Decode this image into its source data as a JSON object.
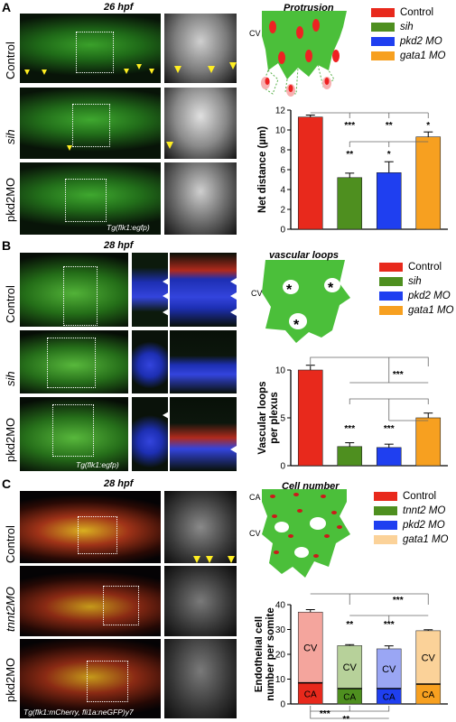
{
  "panels": {
    "A": {
      "letter": "A",
      "timepoint": "26 hpf",
      "rows": [
        "Control",
        "sih",
        "pkd2MO"
      ],
      "transgene": "Tg(flk1:egfp)",
      "diagram_title": "Protrusion",
      "diagram_cv": "CV",
      "legend": [
        {
          "label": "Control",
          "italic": false,
          "color": "#e8291c"
        },
        {
          "label": "sih",
          "italic": true,
          "color": "#4e8f1f"
        },
        {
          "label": "pkd2 MO",
          "italic": true,
          "color": "#1f3ff0"
        },
        {
          "label": "gata1 MO",
          "italic": true,
          "color": "#f7a020"
        }
      ]
    },
    "B": {
      "letter": "B",
      "timepoint": "28 hpf",
      "rows": [
        "Control",
        "sih",
        "pkd2MO"
      ],
      "transgene": "Tg(flk1:egfp)",
      "diagram_title": "vascular loops",
      "diagram_cv": "CV",
      "diagram_marker": "*",
      "legend": [
        {
          "label": "Control",
          "italic": false,
          "color": "#e8291c"
        },
        {
          "label": "sih",
          "italic": true,
          "color": "#4e8f1f"
        },
        {
          "label": "pkd2 MO",
          "italic": true,
          "color": "#1f3ff0"
        },
        {
          "label": "gata1 MO",
          "italic": true,
          "color": "#f7a020"
        }
      ]
    },
    "C": {
      "letter": "C",
      "timepoint": "28 hpf",
      "rows": [
        "Control",
        "tnnt2MO",
        "pkd2MO"
      ],
      "transgene": "Tg(flk1:mCherry, fli1a:neGFP)y7",
      "diagram_title": "Cell number",
      "diagram_cv": "CV",
      "diagram_ca": "CA",
      "legend": [
        {
          "label": "Control",
          "italic": false,
          "color": "#e8291c"
        },
        {
          "label": "tnnt2 MO",
          "italic": true,
          "color": "#4e8f1f"
        },
        {
          "label": "pkd2 MO",
          "italic": true,
          "color": "#1f3ff0"
        },
        {
          "label": "gata1 MO",
          "italic": true,
          "color": "#f7a020"
        }
      ]
    }
  },
  "chart_data": [
    {
      "type": "bar",
      "panel": "A",
      "categories": [
        "Control",
        "sih",
        "pkd2 MO",
        "gata1 MO"
      ],
      "values": [
        11.3,
        5.2,
        5.7,
        9.3
      ],
      "errors": [
        0.2,
        0.45,
        1.1,
        0.5
      ],
      "colors": [
        "#e8291c",
        "#4e8f1f",
        "#1f3ff0",
        "#f7a020"
      ],
      "ylabel": "Net distance (µm)",
      "ylim": [
        0,
        12
      ],
      "yticks": [
        0,
        2,
        4,
        6,
        8,
        10,
        12
      ],
      "significance_above": [
        {
          "pair": [
            "Control",
            "sih"
          ],
          "label": "***"
        },
        {
          "pair": [
            "Control",
            "pkd2 MO"
          ],
          "label": "**"
        },
        {
          "pair": [
            "Control",
            "gata1 MO"
          ],
          "label": "*"
        }
      ],
      "significance_below": [
        {
          "pair": [
            "sih",
            "gata1 MO"
          ],
          "label": "**"
        },
        {
          "pair": [
            "pkd2 MO",
            "gata1 MO"
          ],
          "label": "*"
        }
      ]
    },
    {
      "type": "bar",
      "panel": "B",
      "categories": [
        "Control",
        "sih",
        "pkd2 MO",
        "gata1 MO"
      ],
      "values": [
        10.0,
        2.0,
        1.9,
        5.0
      ],
      "errors": [
        0.5,
        0.4,
        0.35,
        0.5
      ],
      "colors": [
        "#e8291c",
        "#4e8f1f",
        "#1f3ff0",
        "#f7a020"
      ],
      "ylabel": "Vascular loops per plexus",
      "ylim": [
        0,
        10
      ],
      "yticks": [
        0,
        5,
        10
      ],
      "significance_above": [
        {
          "pair": [
            "Control",
            "sih/pkd2/gata1"
          ],
          "label": "***"
        }
      ],
      "significance_below": [
        {
          "pair": [
            "sih",
            "gata1 MO"
          ],
          "label": "***"
        },
        {
          "pair": [
            "pkd2 MO",
            "gata1 MO"
          ],
          "label": "***"
        }
      ]
    },
    {
      "type": "stacked-bar",
      "panel": "C",
      "categories": [
        "Control",
        "tnnt2 MO",
        "pkd2 MO",
        "gata1 MO"
      ],
      "series": [
        {
          "name": "CA",
          "values": [
            8.5,
            6.2,
            6.2,
            8.0
          ]
        },
        {
          "name": "CV",
          "values": [
            28.5,
            17.3,
            16.0,
            21.5
          ]
        }
      ],
      "totals": [
        37.0,
        23.5,
        22.2,
        29.5
      ],
      "errors": [
        1.0,
        0.4,
        1.2,
        0.4
      ],
      "colors_ca": [
        "#e8291c",
        "#4e8f1f",
        "#1f3ff0",
        "#f7a020"
      ],
      "colors_cv": [
        "#f4a59d",
        "#b7d19a",
        "#9aa6f4",
        "#fbd299"
      ],
      "ylabel": "Endothelial cell number per somite",
      "ylim": [
        0,
        40
      ],
      "yticks": [
        0,
        10,
        20,
        30,
        40
      ],
      "significance_above": [
        {
          "pair": [
            "Control",
            "tnnt2/pkd2/gata1"
          ],
          "label": "***"
        }
      ],
      "significance_mid": [
        {
          "pair": [
            "tnnt2 MO",
            "gata1 MO"
          ],
          "label": "**"
        },
        {
          "pair": [
            "pkd2 MO",
            "gata1 MO"
          ],
          "label": "***"
        }
      ],
      "significance_below": [
        {
          "pair": [
            "Control",
            "tnnt2 MO"
          ],
          "label": "***"
        },
        {
          "pair": [
            "Control",
            "pkd2 MO"
          ],
          "label": "**"
        }
      ]
    }
  ]
}
